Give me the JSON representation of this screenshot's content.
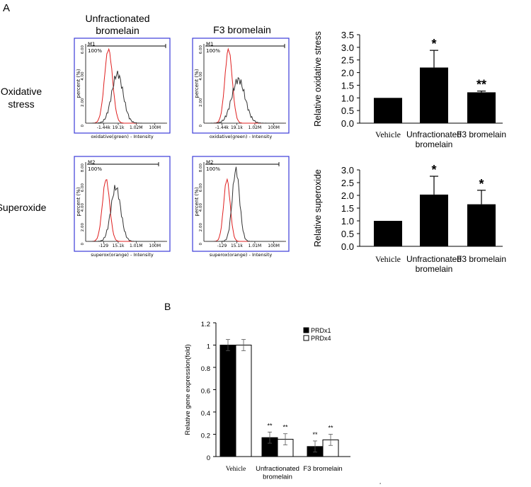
{
  "panel_labels": {
    "a": "A",
    "b": "B"
  },
  "columns": {
    "unfractionated": "Unfractionated\nbromelain",
    "f3": "F3 bromelain"
  },
  "rows": {
    "oxidative": "Oxidative\nstress",
    "superoxide": "Superoxide"
  },
  "colors": {
    "vehicle_trace": "#e02020",
    "treated_trace": "#333333",
    "frame": "#3b3bd8",
    "bar_fill": "#000000"
  },
  "histograms": {
    "common": {
      "ylabel": "percent (%)",
      "ratio": "100%"
    },
    "oxidative": {
      "marker": "M1",
      "xlabel": "oxidative(green) - Intensity",
      "xticks": [
        "-1.44k",
        "19.1k",
        "1.02M",
        "100M"
      ],
      "yticks": [
        "0",
        "2.00",
        "4.00",
        "6.00"
      ],
      "ylim": [
        0,
        6
      ]
    },
    "superoxide": {
      "marker": "M2",
      "xlabel": "superox(orange) - Intensity",
      "xticks": [
        "-129",
        "15.1k",
        "1.01M",
        "100M"
      ],
      "yticks": [
        "0",
        "2.00",
        "4.00",
        "6.00",
        "8.00"
      ],
      "ylim": [
        0,
        8
      ]
    }
  },
  "chart_data": [
    {
      "id": "oxidative",
      "type": "bar",
      "ylabel": "Relative oxidative stress",
      "categories": [
        "Vehicle",
        "Unfractionated\nbromelain",
        "F3 bromelain"
      ],
      "values": [
        1.0,
        2.2,
        1.22
      ],
      "errors": [
        0,
        0.68,
        0.05
      ],
      "annotations": [
        "",
        "*",
        "**"
      ],
      "ylim": [
        0,
        3.5
      ],
      "yticks": [
        "0.0",
        "0.5",
        "1.0",
        "1.5",
        "2.0",
        "2.5",
        "3.0",
        "3.5"
      ]
    },
    {
      "id": "superoxide",
      "type": "bar",
      "ylabel": "Relative superoxide",
      "categories": [
        "Vehicle",
        "Unfractionated\nbromelain",
        "F3 bromelain"
      ],
      "values": [
        1.0,
        2.03,
        1.65
      ],
      "errors": [
        0,
        0.72,
        0.55
      ],
      "annotations": [
        "",
        "*",
        "*"
      ],
      "ylim": [
        0,
        3.0
      ],
      "yticks": [
        "0.0",
        "0.5",
        "1.0",
        "1.5",
        "2.0",
        "2.5",
        "3.0"
      ]
    },
    {
      "id": "prdx",
      "type": "bar",
      "ylabel": "Relative gene expression(fold)",
      "categories": [
        "Vehicle",
        "Unfractionated\nbromelain",
        "F3 bromelain"
      ],
      "series": [
        {
          "name": "PRDx1",
          "values": [
            1.0,
            0.17,
            0.09
          ],
          "errors": [
            0.05,
            0.05,
            0.05
          ],
          "annotations": [
            "",
            "**",
            "**"
          ]
        },
        {
          "name": "PRDx4",
          "values": [
            1.0,
            0.155,
            0.15
          ],
          "errors": [
            0.05,
            0.05,
            0.05
          ],
          "annotations": [
            "",
            "**",
            "**"
          ]
        }
      ],
      "ylim": [
        0,
        1.2
      ],
      "yticks": [
        "0",
        "0.2",
        "0.4",
        "0.6",
        "0.8",
        "1",
        "1.2"
      ],
      "legend": "top-right"
    }
  ]
}
